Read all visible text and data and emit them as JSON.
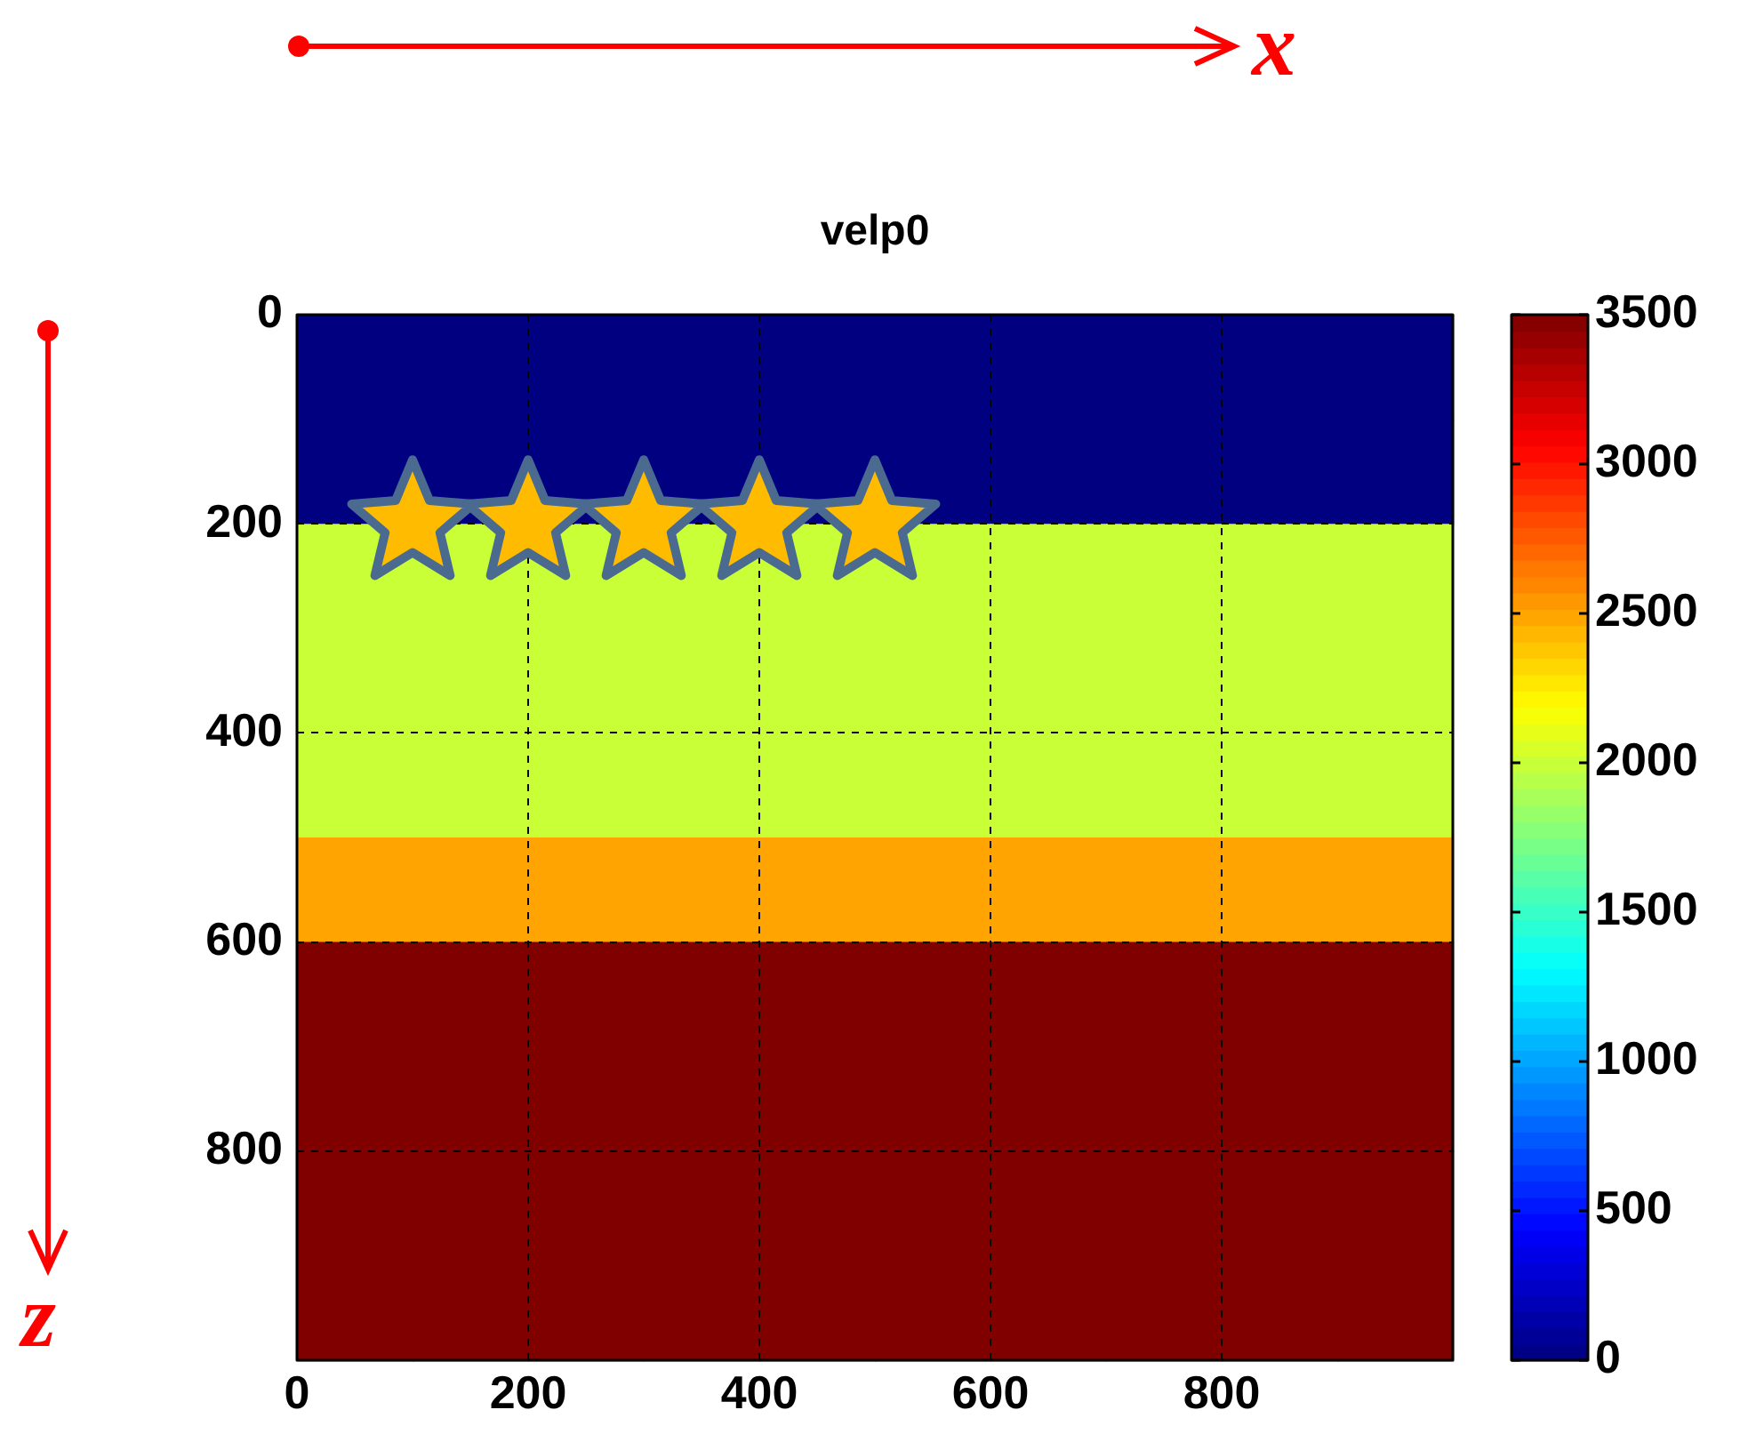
{
  "chart_data": {
    "type": "heatmap",
    "title": "velp0",
    "xlabel": "x",
    "ylabel": "z",
    "x": [
      50,
      150,
      250,
      350,
      450,
      550,
      650,
      750,
      850,
      950
    ],
    "y": [
      50,
      150,
      250,
      350,
      450,
      550,
      650,
      750,
      850,
      950
    ],
    "cells": [
      [
        0,
        0,
        0,
        0,
        0,
        0,
        0,
        0,
        0,
        0
      ],
      [
        0,
        0,
        0,
        0,
        0,
        0,
        0,
        0,
        0,
        0
      ],
      [
        2000,
        2000,
        2000,
        2000,
        2000,
        2000,
        2000,
        2000,
        2000,
        2000
      ],
      [
        2000,
        2000,
        2000,
        2000,
        2000,
        2000,
        2000,
        2000,
        2000,
        2000
      ],
      [
        2000,
        2000,
        2000,
        2000,
        2000,
        2000,
        2000,
        2000,
        2000,
        2000
      ],
      [
        2500,
        2500,
        2500,
        2500,
        2500,
        2500,
        2500,
        2500,
        2500,
        2500
      ],
      [
        3500,
        3500,
        3500,
        3500,
        3500,
        3500,
        3500,
        3500,
        3500,
        3500
      ],
      [
        3500,
        3500,
        3500,
        3500,
        3500,
        3500,
        3500,
        3500,
        3500,
        3500
      ],
      [
        3500,
        3500,
        3500,
        3500,
        3500,
        3500,
        3500,
        3500,
        3500,
        3500
      ],
      [
        3500,
        3500,
        3500,
        3500,
        3500,
        3500,
        3500,
        3500,
        3500,
        3500
      ]
    ],
    "clim": [
      0,
      3500
    ],
    "cticks": [
      0,
      500,
      1000,
      1500,
      2000,
      2500,
      3000,
      3500
    ],
    "xlim": [
      0,
      1000
    ],
    "ylim": [
      1000,
      0
    ],
    "xticks": [
      0,
      200,
      400,
      600,
      800
    ],
    "yticks": [
      0,
      200,
      400,
      600,
      800
    ],
    "grid": true,
    "series": [
      {
        "type": "scatter",
        "marker": "star",
        "color": "#ffbb00",
        "x": [
          100,
          200,
          300,
          400,
          500
        ],
        "values": [
          200,
          200,
          200,
          200,
          200
        ]
      }
    ]
  }
}
